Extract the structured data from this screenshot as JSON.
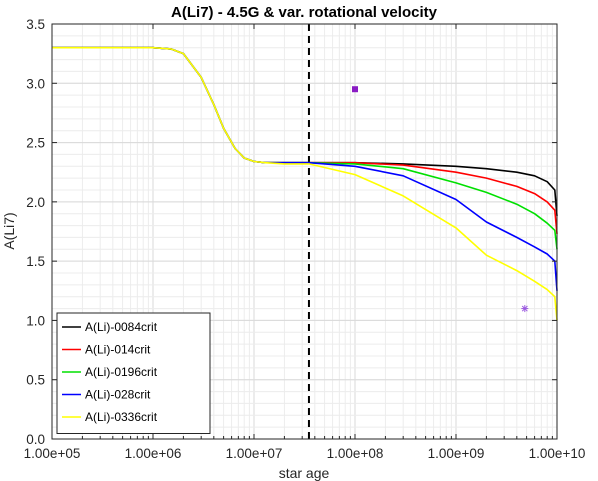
{
  "chart_data": {
    "type": "line",
    "title": "A(Li7) - 4.5G & var. rotational velocity",
    "xlabel": "star age",
    "ylabel": "A(Li7)",
    "xscale": "log",
    "xlim": [
      100000,
      10000000000
    ],
    "ylim": [
      0,
      3.5
    ],
    "xticks": [
      100000,
      1000000,
      10000000,
      100000000,
      1000000000,
      10000000000
    ],
    "xtick_labels": [
      "1.00e+05",
      "1.00e+06",
      "1.00e+07",
      "1.00e+08",
      "1.00e+09",
      "1.00e+10"
    ],
    "yticks": [
      0,
      0.5,
      1.0,
      1.5,
      2.0,
      2.5,
      3.0,
      3.5
    ],
    "ytick_labels": [
      "0.0",
      "0.5",
      "1.0",
      "1.5",
      "2.0",
      "2.5",
      "3.0",
      "3.5"
    ],
    "grid": true,
    "legend_position": "bottom-left",
    "vline": {
      "x": 35000000,
      "style": "dashed",
      "color": "#000000"
    },
    "markers": [
      {
        "x": 100000000,
        "y": 2.95,
        "symbol": "square",
        "color": "#8a1cc4"
      },
      {
        "x": 4800000000,
        "y": 1.1,
        "symbol": "asterisk",
        "color": "#9b59e0"
      }
    ],
    "series": [
      {
        "name": "A(Li)-0084crit",
        "color": "#000000",
        "x": [
          100000,
          1000000,
          1500000,
          2000000,
          3000000,
          4000000,
          5000000,
          6500000,
          8000000,
          10000000,
          13000000,
          20000000,
          35000000,
          100000000,
          300000000,
          1000000000,
          2000000000,
          4000000000,
          6000000000,
          8000000000,
          9500000000,
          10000000000
        ],
        "y": [
          3.3,
          3.3,
          3.29,
          3.25,
          3.05,
          2.82,
          2.62,
          2.45,
          2.37,
          2.34,
          2.33,
          2.33,
          2.33,
          2.33,
          2.32,
          2.3,
          2.28,
          2.25,
          2.22,
          2.17,
          2.1,
          1.88
        ]
      },
      {
        "name": "A(Li)-014crit",
        "color": "#ff0000",
        "x": [
          100000,
          1000000,
          1500000,
          2000000,
          3000000,
          4000000,
          5000000,
          6500000,
          8000000,
          10000000,
          13000000,
          20000000,
          35000000,
          100000000,
          300000000,
          1000000000,
          2000000000,
          4000000000,
          6000000000,
          8000000000,
          9500000000,
          10000000000
        ],
        "y": [
          3.3,
          3.3,
          3.29,
          3.25,
          3.05,
          2.82,
          2.62,
          2.45,
          2.37,
          2.34,
          2.33,
          2.33,
          2.33,
          2.33,
          2.31,
          2.25,
          2.2,
          2.13,
          2.07,
          2.0,
          1.93,
          1.73
        ]
      },
      {
        "name": "A(Li)-0196crit",
        "color": "#00e000",
        "x": [
          100000,
          1000000,
          1500000,
          2000000,
          3000000,
          4000000,
          5000000,
          6500000,
          8000000,
          10000000,
          13000000,
          20000000,
          35000000,
          100000000,
          300000000,
          1000000000,
          2000000000,
          4000000000,
          6000000000,
          8000000000,
          9500000000,
          10000000000
        ],
        "y": [
          3.3,
          3.3,
          3.29,
          3.25,
          3.05,
          2.82,
          2.62,
          2.45,
          2.37,
          2.34,
          2.33,
          2.33,
          2.33,
          2.32,
          2.28,
          2.16,
          2.08,
          1.98,
          1.9,
          1.82,
          1.76,
          1.6
        ]
      },
      {
        "name": "A(Li)-028crit",
        "color": "#0000ff",
        "x": [
          100000,
          1000000,
          1500000,
          2000000,
          3000000,
          4000000,
          5000000,
          6500000,
          8000000,
          10000000,
          13000000,
          20000000,
          35000000,
          100000000,
          300000000,
          1000000000,
          2000000000,
          4000000000,
          6000000000,
          8000000000,
          9500000000,
          10000000000
        ],
        "y": [
          3.3,
          3.3,
          3.29,
          3.25,
          3.05,
          2.82,
          2.62,
          2.45,
          2.37,
          2.34,
          2.33,
          2.33,
          2.33,
          2.3,
          2.22,
          2.02,
          1.83,
          1.7,
          1.62,
          1.56,
          1.5,
          1.25
        ]
      },
      {
        "name": "A(Li)-0336crit",
        "color": "#ffff00",
        "x": [
          100000,
          1000000,
          1500000,
          2000000,
          3000000,
          4000000,
          5000000,
          6500000,
          8000000,
          10000000,
          13000000,
          20000000,
          35000000,
          100000000,
          300000000,
          1000000000,
          2000000000,
          4000000000,
          6000000000,
          8000000000,
          9500000000,
          10000000000
        ],
        "y": [
          3.3,
          3.3,
          3.29,
          3.25,
          3.05,
          2.82,
          2.62,
          2.45,
          2.37,
          2.34,
          2.33,
          2.32,
          2.32,
          2.23,
          2.05,
          1.78,
          1.55,
          1.42,
          1.33,
          1.26,
          1.2,
          1.0
        ]
      }
    ]
  }
}
